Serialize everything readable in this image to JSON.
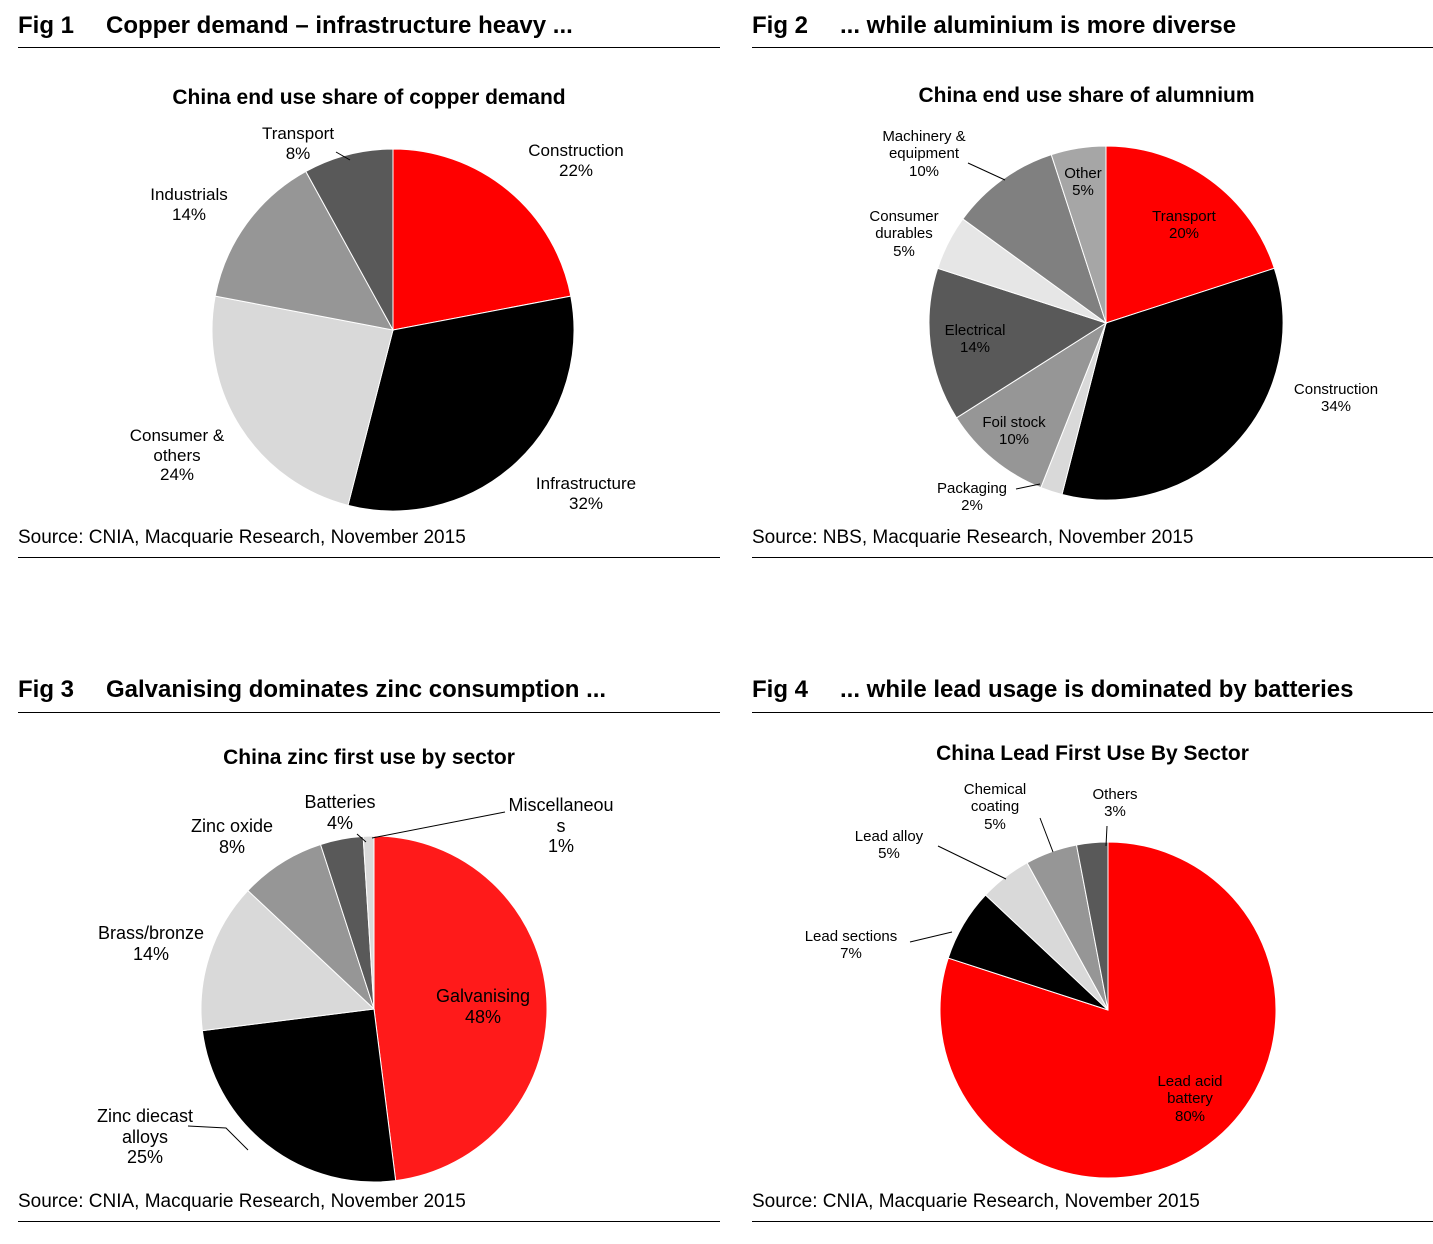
{
  "chart_data": [
    {
      "type": "pie",
      "figure": "Fig 1",
      "heading": "Copper demand – infrastructure heavy ...",
      "title": "China end use share of copper demand",
      "categories": [
        "Construction",
        "Infrastructure",
        "Consumer & others",
        "Industrials",
        "Transport"
      ],
      "values": [
        22,
        32,
        24,
        14,
        8
      ],
      "value_labels": [
        "22%",
        "32%",
        "24%",
        "14%",
        "8%"
      ],
      "colors": [
        "#ff0000",
        "#000000",
        "#d9d9d9",
        "#969696",
        "#595959"
      ],
      "source": "Source: CNIA, Macquarie Research, November 2015"
    },
    {
      "type": "pie",
      "figure": "Fig 2",
      "heading": "... while aluminium is more diverse",
      "title": "China end use share of alumnium",
      "categories": [
        "Transport",
        "Construction",
        "Packaging",
        "Foil stock",
        "Electrical",
        "Consumer durables",
        "Machinery & equipment",
        "Other"
      ],
      "values": [
        20,
        34,
        2,
        10,
        14,
        5,
        10,
        5
      ],
      "value_labels": [
        "20%",
        "34%",
        "2%",
        "10%",
        "14%",
        "5%",
        "10%",
        "5%"
      ],
      "colors": [
        "#ff0000",
        "#000000",
        "#d9d9d9",
        "#969696",
        "#595959",
        "#e6e6e6",
        "#808080",
        "#a6a6a6"
      ],
      "source": "Source: NBS, Macquarie Research, November 2015"
    },
    {
      "type": "pie",
      "figure": "Fig 3",
      "heading": "Galvanising dominates zinc consumption ...",
      "title": "China zinc first use by sector",
      "categories": [
        "Galvanising",
        "Zinc diecast alloys",
        "Brass/bronze",
        "Zinc oxide",
        "Batteries",
        "Miscellaneous"
      ],
      "values": [
        48,
        25,
        14,
        8,
        4,
        1
      ],
      "value_labels": [
        "48%",
        "25%",
        "14%",
        "8%",
        "4%",
        "1%"
      ],
      "colors": [
        "#ff1a1a",
        "#000000",
        "#d9d9d9",
        "#969696",
        "#595959",
        "#d9d9d9"
      ],
      "source": "Source: CNIA, Macquarie Research, November 2015"
    },
    {
      "type": "pie",
      "figure": "Fig 4",
      "heading": "... while lead usage is dominated by batteries",
      "title": "China Lead First Use By Sector",
      "categories": [
        "Lead acid battery",
        "Lead sections",
        "Lead alloy",
        "Chemical coating",
        "Others"
      ],
      "values": [
        80,
        7,
        5,
        5,
        3
      ],
      "value_labels": [
        "80%",
        "7%",
        "5%",
        "5%",
        "3%"
      ],
      "colors": [
        "#ff0000",
        "#000000",
        "#d9d9d9",
        "#969696",
        "#595959"
      ],
      "source": "Source: CNIA, Macquarie Research, November 2015"
    }
  ]
}
